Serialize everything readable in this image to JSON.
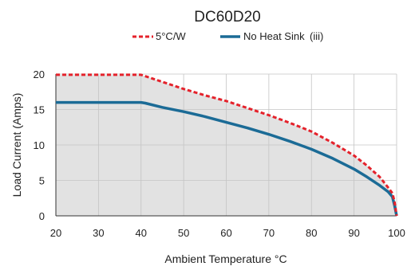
{
  "chart_data": {
    "type": "line",
    "title": "DC60D20",
    "xlabel": "Ambient Temperature °C",
    "ylabel": "Load Current (Amps)",
    "xlim": [
      20,
      100
    ],
    "ylim": [
      0,
      20
    ],
    "xticks": [
      20,
      30,
      40,
      50,
      60,
      70,
      80,
      90,
      100
    ],
    "yticks": [
      0,
      5,
      10,
      15,
      20
    ],
    "grid": true,
    "legend_position": "top-center",
    "area_fill": "#e2e2e2",
    "series": [
      {
        "name": "5°C/W",
        "style": "dashed",
        "color": "#e4222b",
        "x": [
          20,
          40,
          45,
          50,
          55,
          60,
          65,
          70,
          75,
          80,
          85,
          90,
          93,
          96,
          98,
          99,
          99.5,
          100
        ],
        "y": [
          19.9,
          19.9,
          18.9,
          17.9,
          17.0,
          16.2,
          15.2,
          14.2,
          13.1,
          11.9,
          10.3,
          8.5,
          7.1,
          5.5,
          4.0,
          3.2,
          2.0,
          0
        ]
      },
      {
        "name": "No Heat Sink",
        "note": "(iii)",
        "note_color": "#e4222b",
        "style": "solid",
        "color": "#1b6b96",
        "x": [
          20,
          40,
          41,
          45,
          50,
          55,
          60,
          65,
          70,
          75,
          80,
          85,
          90,
          93,
          96,
          98,
          99,
          99.5,
          100
        ],
        "y": [
          16.0,
          16.0,
          15.9,
          15.3,
          14.7,
          14.0,
          13.2,
          12.4,
          11.5,
          10.5,
          9.4,
          8.1,
          6.6,
          5.5,
          4.3,
          3.4,
          2.7,
          1.5,
          0
        ]
      }
    ]
  }
}
